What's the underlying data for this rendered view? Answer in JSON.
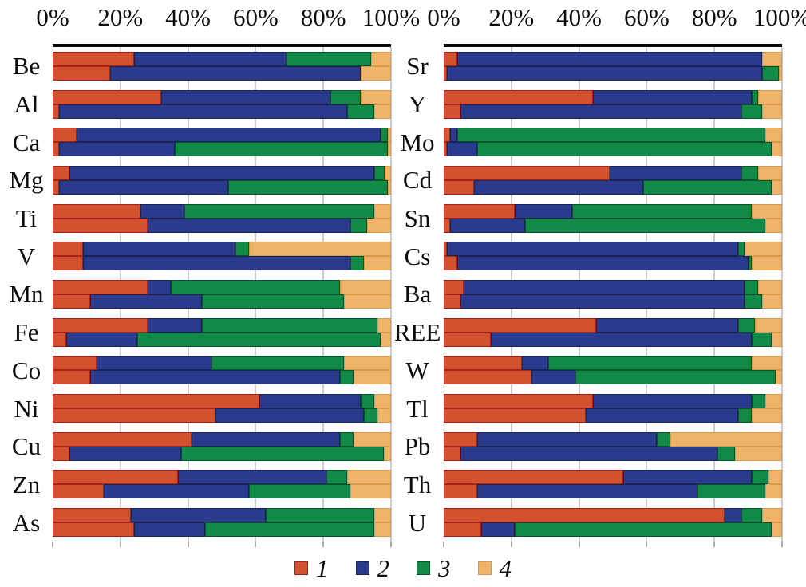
{
  "axis": {
    "ticks": [
      "0%",
      "20%",
      "40%",
      "60%",
      "80%",
      "100%"
    ]
  },
  "legend": [
    {
      "label": "1",
      "color": "#d2512f",
      "border": "#a82018"
    },
    {
      "label": "2",
      "color": "#2a3a8c",
      "border": "#1a2356"
    },
    {
      "label": "3",
      "color": "#118a48",
      "border": "#07522b"
    },
    {
      "label": "4",
      "color": "#efb469",
      "border": "#d79a49"
    }
  ],
  "colors": {
    "series1": "#d2512f",
    "series2": "#2a3a8c",
    "series3": "#118a48",
    "series4": "#efb469",
    "gridline": "#cbcbcb",
    "axis_line": "#0d0d0d"
  },
  "chart_data": {
    "type": "bar",
    "orientation": "horizontal",
    "stacked": true,
    "units": "percent",
    "xlim": [
      0,
      100
    ],
    "x_ticks": [
      "0%",
      "20%",
      "40%",
      "60%",
      "80%",
      "100%"
    ],
    "series_names": [
      "1",
      "2",
      "3",
      "4"
    ],
    "bars_per_category": 2,
    "legend_position": "bottom",
    "grid": true,
    "panels": [
      {
        "name": "left",
        "rows": [
          {
            "label": "Be",
            "bars": [
              [
                24,
                45,
                25,
                6
              ],
              [
                17,
                74,
                0,
                9
              ]
            ]
          },
          {
            "label": "Al",
            "bars": [
              [
                32,
                50,
                9,
                9
              ],
              [
                2,
                85,
                8,
                5
              ]
            ]
          },
          {
            "label": "Ca",
            "bars": [
              [
                7,
                90,
                2,
                1
              ],
              [
                2,
                34,
                63,
                1
              ]
            ]
          },
          {
            "label": "Mg",
            "bars": [
              [
                5,
                90,
                3,
                2
              ],
              [
                2,
                50,
                47,
                1
              ]
            ]
          },
          {
            "label": "Ti",
            "bars": [
              [
                26,
                13,
                56,
                5
              ],
              [
                28,
                60,
                5,
                7
              ]
            ]
          },
          {
            "label": "V",
            "bars": [
              [
                9,
                45,
                4,
                42
              ],
              [
                9,
                79,
                4,
                8
              ]
            ]
          },
          {
            "label": "Mn",
            "bars": [
              [
                28,
                7,
                50,
                15
              ],
              [
                11,
                33,
                42,
                14
              ]
            ]
          },
          {
            "label": "Fe",
            "bars": [
              [
                28,
                16,
                52,
                4
              ],
              [
                4,
                21,
                72,
                3
              ]
            ]
          },
          {
            "label": "Co",
            "bars": [
              [
                13,
                34,
                39,
                14
              ],
              [
                11,
                74,
                4,
                11
              ]
            ]
          },
          {
            "label": "Ni",
            "bars": [
              [
                61,
                30,
                4,
                5
              ],
              [
                48,
                44,
                4,
                4
              ]
            ]
          },
          {
            "label": "Cu",
            "bars": [
              [
                41,
                44,
                4,
                11
              ],
              [
                5,
                33,
                60,
                2
              ]
            ]
          },
          {
            "label": "Zn",
            "bars": [
              [
                37,
                44,
                6,
                13
              ],
              [
                15,
                43,
                30,
                12
              ]
            ]
          },
          {
            "label": "As",
            "bars": [
              [
                23,
                40,
                32,
                5
              ],
              [
                24,
                21,
                50,
                5
              ]
            ]
          }
        ]
      },
      {
        "name": "right",
        "rows": [
          {
            "label": "Sr",
            "bars": [
              [
                4,
                90,
                0,
                6
              ],
              [
                1,
                93,
                5,
                1
              ]
            ]
          },
          {
            "label": "Y",
            "bars": [
              [
                44,
                47,
                2,
                7
              ],
              [
                5,
                83,
                6,
                6
              ]
            ]
          },
          {
            "label": "Mo",
            "bars": [
              [
                2,
                2,
                91,
                5
              ],
              [
                1,
                9,
                87,
                3
              ]
            ]
          },
          {
            "label": "Cd",
            "bars": [
              [
                49,
                39,
                5,
                7
              ],
              [
                9,
                50,
                38,
                3
              ]
            ]
          },
          {
            "label": "Sn",
            "bars": [
              [
                21,
                17,
                53,
                9
              ],
              [
                2,
                22,
                71,
                5
              ]
            ]
          },
          {
            "label": "Cs",
            "bars": [
              [
                1,
                86,
                2,
                11
              ],
              [
                4,
                86,
                1,
                9
              ]
            ]
          },
          {
            "label": "Ba",
            "bars": [
              [
                6,
                83,
                4,
                7
              ],
              [
                5,
                84,
                5,
                6
              ]
            ]
          },
          {
            "label": "REE",
            "bars": [
              [
                45,
                42,
                5,
                8
              ],
              [
                14,
                77,
                6,
                3
              ]
            ]
          },
          {
            "label": "W",
            "bars": [
              [
                23,
                8,
                60,
                9
              ],
              [
                26,
                13,
                59,
                2
              ]
            ]
          },
          {
            "label": "Tl",
            "bars": [
              [
                44,
                47,
                4,
                5
              ],
              [
                42,
                45,
                4,
                9
              ]
            ]
          },
          {
            "label": "Pb",
            "bars": [
              [
                10,
                53,
                4,
                33
              ],
              [
                5,
                76,
                5,
                14
              ]
            ]
          },
          {
            "label": "Th",
            "bars": [
              [
                53,
                38,
                5,
                4
              ],
              [
                10,
                65,
                20,
                5
              ]
            ]
          },
          {
            "label": "U",
            "bars": [
              [
                83,
                5,
                6,
                6
              ],
              [
                11,
                10,
                76,
                3
              ]
            ]
          }
        ]
      }
    ]
  }
}
